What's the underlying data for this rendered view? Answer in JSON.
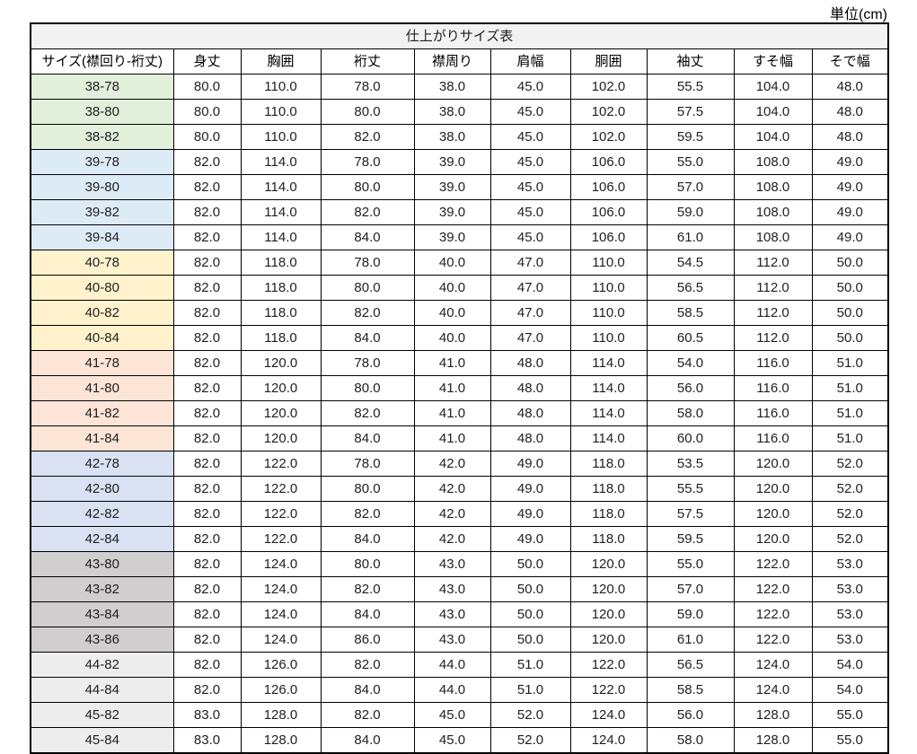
{
  "unit_label": "単位(cm)",
  "table": {
    "title": "仕上がりサイズ表",
    "title_bg": "#f2f2f2",
    "columns": [
      "サイズ(襟回り-裄丈)",
      "身丈",
      "胸囲",
      "裄丈",
      "襟周り",
      "肩幅",
      "胴囲",
      "袖丈",
      "すそ幅",
      "そで幅"
    ],
    "group_colors": {
      "38": "#e2efda",
      "39": "#ddebf7",
      "40": "#fff2cc",
      "41": "#fce4d6",
      "42": "#d9e1f2",
      "43": "#d0cece",
      "44": "#ededed",
      "45": "#ededed"
    },
    "rows": [
      {
        "size": "38-78",
        "group": "38",
        "values": [
          "80.0",
          "110.0",
          "78.0",
          "38.0",
          "45.0",
          "102.0",
          "55.5",
          "104.0",
          "48.0"
        ]
      },
      {
        "size": "38-80",
        "group": "38",
        "values": [
          "80.0",
          "110.0",
          "80.0",
          "38.0",
          "45.0",
          "102.0",
          "57.5",
          "104.0",
          "48.0"
        ]
      },
      {
        "size": "38-82",
        "group": "38",
        "values": [
          "80.0",
          "110.0",
          "82.0",
          "38.0",
          "45.0",
          "102.0",
          "59.5",
          "104.0",
          "48.0"
        ]
      },
      {
        "size": "39-78",
        "group": "39",
        "values": [
          "82.0",
          "114.0",
          "78.0",
          "39.0",
          "45.0",
          "106.0",
          "55.0",
          "108.0",
          "49.0"
        ]
      },
      {
        "size": "39-80",
        "group": "39",
        "values": [
          "82.0",
          "114.0",
          "80.0",
          "39.0",
          "45.0",
          "106.0",
          "57.0",
          "108.0",
          "49.0"
        ]
      },
      {
        "size": "39-82",
        "group": "39",
        "values": [
          "82.0",
          "114.0",
          "82.0",
          "39.0",
          "45.0",
          "106.0",
          "59.0",
          "108.0",
          "49.0"
        ]
      },
      {
        "size": "39-84",
        "group": "39",
        "values": [
          "82.0",
          "114.0",
          "84.0",
          "39.0",
          "45.0",
          "106.0",
          "61.0",
          "108.0",
          "49.0"
        ]
      },
      {
        "size": "40-78",
        "group": "40",
        "values": [
          "82.0",
          "118.0",
          "78.0",
          "40.0",
          "47.0",
          "110.0",
          "54.5",
          "112.0",
          "50.0"
        ]
      },
      {
        "size": "40-80",
        "group": "40",
        "values": [
          "82.0",
          "118.0",
          "80.0",
          "40.0",
          "47.0",
          "110.0",
          "56.5",
          "112.0",
          "50.0"
        ]
      },
      {
        "size": "40-82",
        "group": "40",
        "values": [
          "82.0",
          "118.0",
          "82.0",
          "40.0",
          "47.0",
          "110.0",
          "58.5",
          "112.0",
          "50.0"
        ]
      },
      {
        "size": "40-84",
        "group": "40",
        "values": [
          "82.0",
          "118.0",
          "84.0",
          "40.0",
          "47.0",
          "110.0",
          "60.5",
          "112.0",
          "50.0"
        ]
      },
      {
        "size": "41-78",
        "group": "41",
        "values": [
          "82.0",
          "120.0",
          "78.0",
          "41.0",
          "48.0",
          "114.0",
          "54.0",
          "116.0",
          "51.0"
        ]
      },
      {
        "size": "41-80",
        "group": "41",
        "values": [
          "82.0",
          "120.0",
          "80.0",
          "41.0",
          "48.0",
          "114.0",
          "56.0",
          "116.0",
          "51.0"
        ]
      },
      {
        "size": "41-82",
        "group": "41",
        "values": [
          "82.0",
          "120.0",
          "82.0",
          "41.0",
          "48.0",
          "114.0",
          "58.0",
          "116.0",
          "51.0"
        ]
      },
      {
        "size": "41-84",
        "group": "41",
        "values": [
          "82.0",
          "120.0",
          "84.0",
          "41.0",
          "48.0",
          "114.0",
          "60.0",
          "116.0",
          "51.0"
        ]
      },
      {
        "size": "42-78",
        "group": "42",
        "values": [
          "82.0",
          "122.0",
          "78.0",
          "42.0",
          "49.0",
          "118.0",
          "53.5",
          "120.0",
          "52.0"
        ]
      },
      {
        "size": "42-80",
        "group": "42",
        "values": [
          "82.0",
          "122.0",
          "80.0",
          "42.0",
          "49.0",
          "118.0",
          "55.5",
          "120.0",
          "52.0"
        ]
      },
      {
        "size": "42-82",
        "group": "42",
        "values": [
          "82.0",
          "122.0",
          "82.0",
          "42.0",
          "49.0",
          "118.0",
          "57.5",
          "120.0",
          "52.0"
        ]
      },
      {
        "size": "42-84",
        "group": "42",
        "values": [
          "82.0",
          "122.0",
          "84.0",
          "42.0",
          "49.0",
          "118.0",
          "59.5",
          "120.0",
          "52.0"
        ]
      },
      {
        "size": "43-80",
        "group": "43",
        "values": [
          "82.0",
          "124.0",
          "80.0",
          "43.0",
          "50.0",
          "120.0",
          "55.0",
          "122.0",
          "53.0"
        ]
      },
      {
        "size": "43-82",
        "group": "43",
        "values": [
          "82.0",
          "124.0",
          "82.0",
          "43.0",
          "50.0",
          "120.0",
          "57.0",
          "122.0",
          "53.0"
        ]
      },
      {
        "size": "43-84",
        "group": "43",
        "values": [
          "82.0",
          "124.0",
          "84.0",
          "43.0",
          "50.0",
          "120.0",
          "59.0",
          "122.0",
          "53.0"
        ]
      },
      {
        "size": "43-86",
        "group": "43",
        "values": [
          "82.0",
          "124.0",
          "86.0",
          "43.0",
          "50.0",
          "120.0",
          "61.0",
          "122.0",
          "53.0"
        ]
      },
      {
        "size": "44-82",
        "group": "44",
        "values": [
          "82.0",
          "126.0",
          "82.0",
          "44.0",
          "51.0",
          "122.0",
          "56.5",
          "124.0",
          "54.0"
        ]
      },
      {
        "size": "44-84",
        "group": "44",
        "values": [
          "82.0",
          "126.0",
          "84.0",
          "44.0",
          "51.0",
          "122.0",
          "58.5",
          "124.0",
          "54.0"
        ]
      },
      {
        "size": "45-82",
        "group": "45",
        "values": [
          "83.0",
          "128.0",
          "82.0",
          "45.0",
          "52.0",
          "124.0",
          "56.0",
          "128.0",
          "55.0"
        ]
      },
      {
        "size": "45-84",
        "group": "45",
        "values": [
          "83.0",
          "128.0",
          "84.0",
          "45.0",
          "52.0",
          "124.0",
          "58.0",
          "128.0",
          "55.0"
        ]
      }
    ]
  }
}
